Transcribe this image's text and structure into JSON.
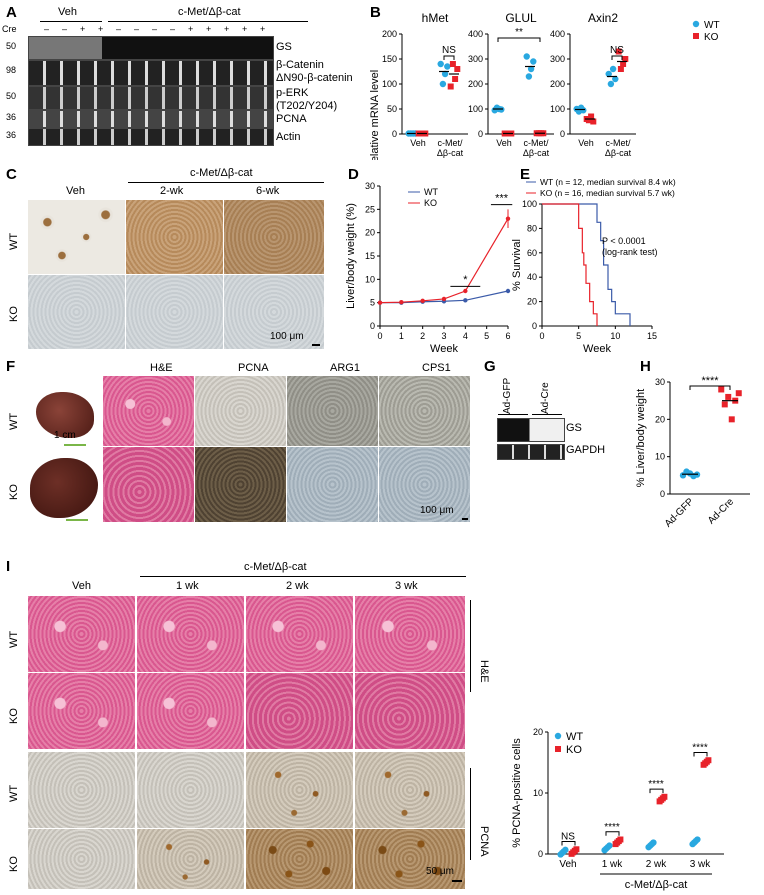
{
  "panels": {
    "A": {
      "label": "A",
      "veh": "Veh",
      "cmet": "c-Met/Δβ-cat",
      "cre": "Cre",
      "cre_signs": [
        "–",
        "–",
        "+",
        "+",
        "–",
        "–",
        "–",
        "–",
        "+",
        "+",
        "+",
        "+",
        "+"
      ],
      "markers": [
        "50",
        "98",
        "50",
        "36",
        "36"
      ],
      "bands": [
        "GS",
        "β-Catenin",
        "ΔN90-β-catenin",
        "p-ERK",
        "(T202/Y204)",
        "PCNA",
        "Actin"
      ]
    },
    "B": {
      "label": "B",
      "ylabel": "Relative mRNA level",
      "legend": [
        {
          "name": "WT",
          "color": "#29a8e0"
        },
        {
          "name": "KO",
          "color": "#e8222a"
        }
      ],
      "subplots": [
        {
          "title": "hMet",
          "ticks": [
            "0",
            "50",
            "100",
            "150",
            "200"
          ],
          "cats": [
            "Veh",
            "c-Met/\nΔβ-cat"
          ],
          "sig": "NS"
        },
        {
          "title": "GLUL",
          "ticks": [
            "0",
            "100",
            "200",
            "300",
            "400"
          ],
          "cats": [
            "Veh",
            "c-Met/\nΔβ-cat"
          ],
          "sig": "**"
        },
        {
          "title": "Axin2",
          "ticks": [
            "0",
            "100",
            "200",
            "300",
            "400"
          ],
          "cats": [
            "Veh",
            "c-Met/\nΔβ-cat"
          ],
          "sig": "NS"
        }
      ]
    },
    "C": {
      "label": "C",
      "cols": [
        "Veh",
        "2-wk",
        "6-wk"
      ],
      "group": "c-Met/Δβ-cat",
      "rows": [
        "WT",
        "KO"
      ],
      "scale": "100 μm"
    },
    "D": {
      "label": "D",
      "ylabel": "Liver/body weight (%)",
      "xlabel": "Week",
      "xticks": [
        "0",
        "1",
        "2",
        "3",
        "4",
        "5",
        "6"
      ],
      "yticks": [
        "0",
        "5",
        "10",
        "15",
        "20",
        "25",
        "30"
      ],
      "legend": [
        "WT",
        "KO"
      ],
      "sig": [
        "*",
        "***"
      ]
    },
    "E": {
      "label": "E",
      "ylabel": "% Survival",
      "xlabel": "Week",
      "xticks": [
        "0",
        "5",
        "10",
        "15"
      ],
      "yticks": [
        "0",
        "20",
        "40",
        "60",
        "80",
        "100"
      ],
      "legend": [
        "WT (n = 12, median survival 8.4 wk)",
        "KO (n = 16, median survival 5.7 wk)"
      ],
      "pval": "P < 0.0001",
      "test": "(log-rank test)"
    },
    "F": {
      "label": "F",
      "cols": [
        "H&E",
        "PCNA",
        "ARG1",
        "CPS1"
      ],
      "rows": [
        "WT",
        "KO"
      ],
      "photo_scale": "1 cm",
      "scale": "100 μm"
    },
    "G": {
      "label": "G",
      "lanes": [
        "Ad-GFP",
        "Ad-Cre"
      ],
      "bands": [
        "GS",
        "GAPDH"
      ]
    },
    "H": {
      "label": "H",
      "ylabel": "% Liver/body weight",
      "yticks": [
        "0",
        "10",
        "20",
        "30"
      ],
      "cats": [
        "Ad-GFP",
        "Ad-Cre"
      ],
      "sig": "****"
    },
    "I": {
      "label": "I",
      "group": "c-Met/Δβ-cat",
      "cols": [
        "Veh",
        "1 wk",
        "2 wk",
        "3 wk"
      ],
      "rows": [
        "WT",
        "KO",
        "WT",
        "KO"
      ],
      "stains": [
        "H&E",
        "PCNA"
      ],
      "scale": "50 μm",
      "plot": {
        "ylabel": "% PCNA-positive cells",
        "yticks": [
          "0",
          "10",
          "20"
        ],
        "cats": [
          "Veh",
          "1 wk",
          "2 wk",
          "3 wk"
        ],
        "sig": [
          "NS",
          "****",
          "****",
          "****"
        ],
        "legend": [
          "WT",
          "KO"
        ],
        "group": "c-Met/Δβ-cat"
      }
    }
  },
  "chart_data": [
    {
      "type": "scatter",
      "panel": "B-hMet",
      "title": "hMet",
      "ylabel": "Relative mRNA level",
      "categories": [
        "Veh",
        "c-Met/Δβ-cat"
      ],
      "ylim": [
        0,
        200
      ],
      "series": [
        {
          "name": "WT",
          "values": [
            [
              1,
              1,
              1,
              1
            ],
            [
              140,
              100,
              120,
              135
            ]
          ],
          "mean": [
            1,
            125
          ]
        },
        {
          "name": "KO",
          "values": [
            [
              1,
              1,
              1,
              1
            ],
            [
              95,
              140,
              110,
              130
            ]
          ],
          "mean": [
            1,
            120
          ]
        }
      ]
    },
    {
      "type": "scatter",
      "panel": "B-GLUL",
      "title": "GLUL",
      "categories": [
        "Veh",
        "c-Met/Δβ-cat"
      ],
      "ylim": [
        0,
        400
      ],
      "series": [
        {
          "name": "WT",
          "values": [
            [
              95,
              105,
              100,
              98
            ],
            [
              310,
              230,
              260,
              290
            ]
          ],
          "mean": [
            100,
            270
          ]
        },
        {
          "name": "KO",
          "values": [
            [
              2,
              2,
              2,
              2
            ],
            [
              3,
              3,
              3,
              3
            ]
          ],
          "mean": [
            2,
            3
          ]
        }
      ]
    },
    {
      "type": "scatter",
      "panel": "B-Axin2",
      "title": "Axin2",
      "categories": [
        "Veh",
        "c-Met/Δβ-cat"
      ],
      "ylim": [
        0,
        400
      ],
      "series": [
        {
          "name": "WT",
          "values": [
            [
              100,
              90,
              105,
              95
            ],
            [
              240,
              200,
              260,
              220
            ]
          ],
          "mean": [
            98,
            230
          ]
        },
        {
          "name": "KO",
          "values": [
            [
              60,
              55,
              70,
              50
            ],
            [
              330,
              260,
              280,
              300
            ]
          ],
          "mean": [
            60,
            290
          ]
        }
      ]
    },
    {
      "type": "line",
      "panel": "D",
      "xlabel": "Week",
      "ylabel": "Liver/body weight (%)",
      "x": [
        0,
        1,
        2,
        3,
        4,
        6
      ],
      "ylim": [
        0,
        30
      ],
      "series": [
        {
          "name": "WT",
          "values": [
            5,
            5,
            5.2,
            5.3,
            5.5,
            7.5
          ]
        },
        {
          "name": "KO",
          "values": [
            5,
            5.1,
            5.4,
            5.8,
            7.5,
            23
          ]
        }
      ]
    },
    {
      "type": "line",
      "panel": "E",
      "xlabel": "Week",
      "ylabel": "% Survival",
      "xlim": [
        0,
        15
      ],
      "ylim": [
        0,
        100
      ],
      "series": [
        {
          "name": "WT (n = 12, median survival 8.4 wk)",
          "x": [
            0,
            7,
            7.5,
            8,
            8.4,
            9,
            9.5,
            10,
            12
          ],
          "values": [
            100,
            100,
            85,
            70,
            50,
            30,
            20,
            10,
            0
          ]
        },
        {
          "name": "KO (n = 16, median survival 5.7 wk)",
          "x": [
            0,
            4.5,
            5,
            5.5,
            5.7,
            6,
            6.5,
            7,
            7.5
          ],
          "values": [
            100,
            100,
            80,
            60,
            50,
            35,
            20,
            10,
            0
          ]
        }
      ]
    },
    {
      "type": "scatter",
      "panel": "H",
      "ylabel": "% Liver/body weight",
      "categories": [
        "Ad-GFP",
        "Ad-Cre"
      ],
      "ylim": [
        0,
        30
      ],
      "values": [
        [
          5,
          6,
          5.5,
          4.8,
          5.2
        ],
        [
          28,
          24,
          26,
          20,
          25,
          27
        ]
      ],
      "mean": [
        5.3,
        25
      ]
    },
    {
      "type": "scatter",
      "panel": "I-plot",
      "ylabel": "% PCNA-positive cells",
      "categories": [
        "Veh",
        "1 wk",
        "2 wk",
        "3 wk"
      ],
      "ylim": [
        0,
        20
      ],
      "series": [
        {
          "name": "WT",
          "values": [
            0.3,
            1,
            1.5,
            2
          ],
          "color": "#29a8e0"
        },
        {
          "name": "KO",
          "values": [
            0.4,
            2,
            9,
            15
          ],
          "color": "#e8222a"
        }
      ]
    }
  ]
}
